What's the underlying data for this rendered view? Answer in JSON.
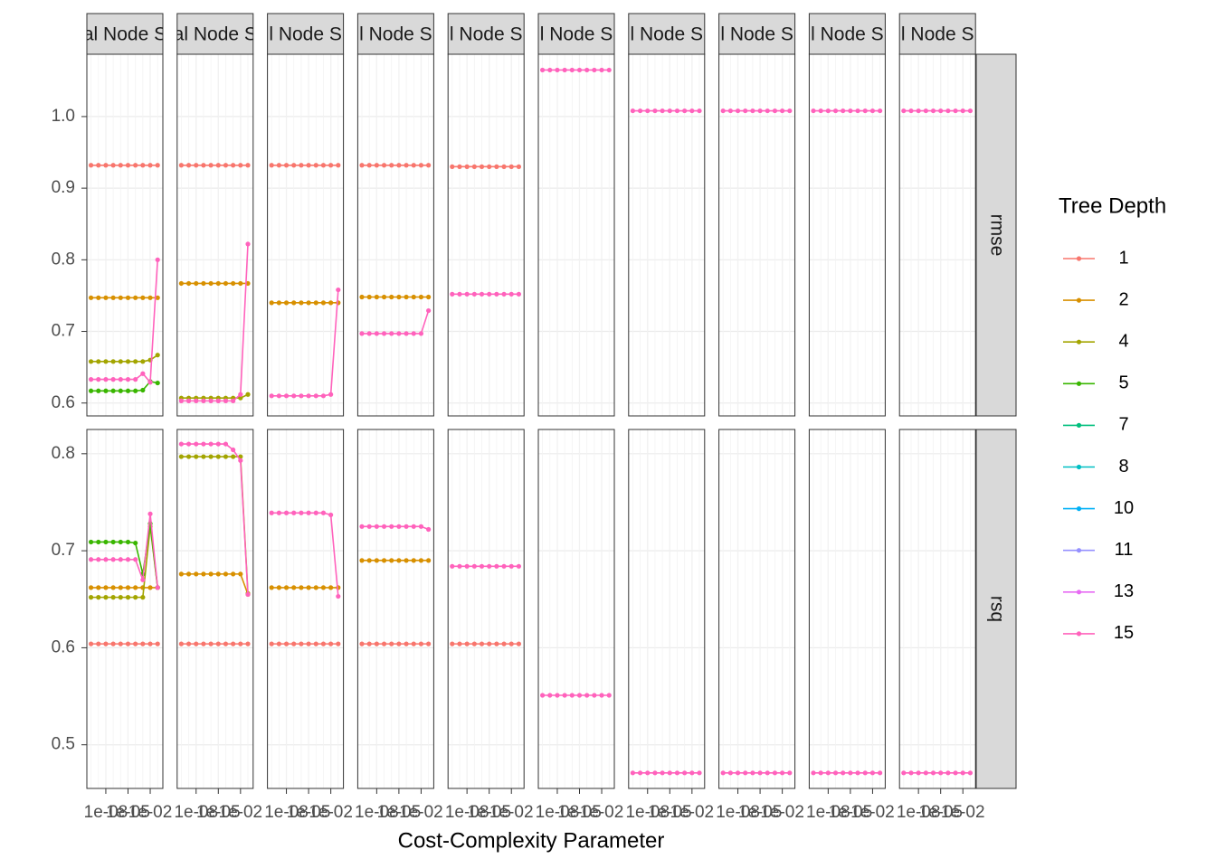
{
  "chart_data": {
    "type": "line",
    "x_label": "Cost-Complexity Parameter",
    "log_x": true,
    "x": [
      1e-10,
      1e-09,
      1e-08,
      1e-07,
      1e-06,
      1e-05,
      0.0001,
      0.001,
      0.01,
      0.1
    ],
    "xlim": [
      2.75e-11,
      0.51
    ],
    "xticks": [
      {
        "value": 1e-08,
        "label": "1e-08"
      },
      {
        "value": 1e-05,
        "label": "1e-05"
      },
      {
        "value": 0.01,
        "label": "1e-02"
      }
    ],
    "grid": true,
    "legend": {
      "title": "Tree Depth",
      "position": "right",
      "entries": [
        {
          "name": "1",
          "color": "#F8766D"
        },
        {
          "name": "2",
          "color": "#D89000"
        },
        {
          "name": "4",
          "color": "#A3A500"
        },
        {
          "name": "5",
          "color": "#39B600"
        },
        {
          "name": "7",
          "color": "#00BF7D"
        },
        {
          "name": "8",
          "color": "#00BFC4"
        },
        {
          "name": "10",
          "color": "#00B0F6"
        },
        {
          "name": "11",
          "color": "#9590FF"
        },
        {
          "name": "13",
          "color": "#E76BF3"
        },
        {
          "name": "15",
          "color": "#FF62BC"
        }
      ]
    },
    "columns": [
      "al Node S",
      "al Node S",
      "l Node S",
      "l Node S",
      "l Node S",
      "l Node S",
      "l Node S",
      "l Node S",
      "l Node S",
      "l Node S"
    ],
    "rows": [
      {
        "label": "rmse",
        "ylim": [
          0.582,
          1.087
        ],
        "yticks": [
          0.6,
          0.7,
          0.8,
          0.9,
          {
            "value": 1,
            "label": "1.0"
          }
        ],
        "panels": [
          [
            {
              "name": "1",
              "values": [
                0.932,
                0.932,
                0.932,
                0.932,
                0.932,
                0.932,
                0.932,
                0.932,
                0.932,
                0.932
              ]
            },
            {
              "name": "2",
              "values": [
                0.747,
                0.747,
                0.747,
                0.747,
                0.747,
                0.747,
                0.747,
                0.747,
                0.747,
                0.747
              ]
            },
            {
              "name": "4",
              "values": [
                0.658,
                0.658,
                0.658,
                0.658,
                0.658,
                0.658,
                0.658,
                0.658,
                0.66,
                0.667
              ]
            },
            {
              "name": "5",
              "values": [
                0.617,
                0.617,
                0.617,
                0.617,
                0.617,
                0.617,
                0.617,
                0.618,
                0.63,
                0.628
              ]
            },
            {
              "name": "15",
              "values": [
                0.633,
                0.633,
                0.633,
                0.633,
                0.633,
                0.633,
                0.633,
                0.641,
                0.629,
                0.8
              ]
            }
          ],
          [
            {
              "name": "1",
              "values": [
                0.932,
                0.932,
                0.932,
                0.932,
                0.932,
                0.932,
                0.932,
                0.932,
                0.932,
                0.932
              ]
            },
            {
              "name": "2",
              "values": [
                0.767,
                0.767,
                0.767,
                0.767,
                0.767,
                0.767,
                0.767,
                0.767,
                0.767,
                0.767
              ]
            },
            {
              "name": "4",
              "values": [
                0.607,
                0.607,
                0.607,
                0.607,
                0.607,
                0.607,
                0.607,
                0.607,
                0.607,
                0.612
              ]
            },
            {
              "name": "15",
              "values": [
                0.603,
                0.603,
                0.603,
                0.603,
                0.603,
                0.603,
                0.603,
                0.603,
                0.612,
                0.822
              ]
            }
          ],
          [
            {
              "name": "1",
              "values": [
                0.932,
                0.932,
                0.932,
                0.932,
                0.932,
                0.932,
                0.932,
                0.932,
                0.932,
                0.932
              ]
            },
            {
              "name": "2",
              "values": [
                0.74,
                0.74,
                0.74,
                0.74,
                0.74,
                0.74,
                0.74,
                0.74,
                0.74,
                0.74
              ]
            },
            {
              "name": "15",
              "values": [
                0.61,
                0.61,
                0.61,
                0.61,
                0.61,
                0.61,
                0.61,
                0.61,
                0.612,
                0.758
              ]
            }
          ],
          [
            {
              "name": "1",
              "values": [
                0.932,
                0.932,
                0.932,
                0.932,
                0.932,
                0.932,
                0.932,
                0.932,
                0.932,
                0.932
              ]
            },
            {
              "name": "2",
              "values": [
                0.748,
                0.748,
                0.748,
                0.748,
                0.748,
                0.748,
                0.748,
                0.748,
                0.748,
                0.748
              ]
            },
            {
              "name": "15",
              "values": [
                0.697,
                0.697,
                0.697,
                0.697,
                0.697,
                0.697,
                0.697,
                0.697,
                0.697,
                0.729
              ]
            }
          ],
          [
            {
              "name": "1",
              "values": [
                0.93,
                0.93,
                0.93,
                0.93,
                0.93,
                0.93,
                0.93,
                0.93,
                0.93,
                0.93
              ]
            },
            {
              "name": "15",
              "values": [
                0.752,
                0.752,
                0.752,
                0.752,
                0.752,
                0.752,
                0.752,
                0.752,
                0.752,
                0.752
              ]
            }
          ],
          [
            {
              "name": "15",
              "values": [
                1.065,
                1.065,
                1.065,
                1.065,
                1.065,
                1.065,
                1.065,
                1.065,
                1.065,
                1.065
              ]
            }
          ],
          [
            {
              "name": "15",
              "values": [
                1.008,
                1.008,
                1.008,
                1.008,
                1.008,
                1.008,
                1.008,
                1.008,
                1.008,
                1.008
              ]
            }
          ],
          [
            {
              "name": "15",
              "values": [
                1.008,
                1.008,
                1.008,
                1.008,
                1.008,
                1.008,
                1.008,
                1.008,
                1.008,
                1.008
              ]
            }
          ],
          [
            {
              "name": "15",
              "values": [
                1.008,
                1.008,
                1.008,
                1.008,
                1.008,
                1.008,
                1.008,
                1.008,
                1.008,
                1.008
              ]
            }
          ],
          [
            {
              "name": "15",
              "values": [
                1.008,
                1.008,
                1.008,
                1.008,
                1.008,
                1.008,
                1.008,
                1.008,
                1.008,
                1.008
              ]
            }
          ]
        ]
      },
      {
        "label": "rsq",
        "ylim": [
          0.455,
          0.825
        ],
        "yticks": [
          0.5,
          0.6,
          0.7,
          0.8
        ],
        "panels": [
          [
            {
              "name": "1",
              "values": [
                0.604,
                0.604,
                0.604,
                0.604,
                0.604,
                0.604,
                0.604,
                0.604,
                0.604,
                0.604
              ]
            },
            {
              "name": "2",
              "values": [
                0.662,
                0.662,
                0.662,
                0.662,
                0.662,
                0.662,
                0.662,
                0.662,
                0.662,
                0.662
              ]
            },
            {
              "name": "4",
              "values": [
                0.652,
                0.652,
                0.652,
                0.652,
                0.652,
                0.652,
                0.652,
                0.652,
                0.725,
                0.662
              ]
            },
            {
              "name": "5",
              "values": [
                0.709,
                0.709,
                0.709,
                0.709,
                0.709,
                0.709,
                0.708,
                0.676,
                0.728,
                0.662
              ]
            },
            {
              "name": "15",
              "values": [
                0.691,
                0.691,
                0.691,
                0.691,
                0.691,
                0.691,
                0.691,
                0.67,
                0.738,
                0.662
              ]
            }
          ],
          [
            {
              "name": "1",
              "values": [
                0.604,
                0.604,
                0.604,
                0.604,
                0.604,
                0.604,
                0.604,
                0.604,
                0.604,
                0.604
              ]
            },
            {
              "name": "2",
              "values": [
                0.676,
                0.676,
                0.676,
                0.676,
                0.676,
                0.676,
                0.676,
                0.676,
                0.676,
                0.655
              ]
            },
            {
              "name": "4",
              "values": [
                0.797,
                0.797,
                0.797,
                0.797,
                0.797,
                0.797,
                0.797,
                0.797,
                0.797,
                0.656
              ]
            },
            {
              "name": "15",
              "values": [
                0.81,
                0.81,
                0.81,
                0.81,
                0.81,
                0.81,
                0.81,
                0.804,
                0.793,
                0.655
              ]
            }
          ],
          [
            {
              "name": "1",
              "values": [
                0.604,
                0.604,
                0.604,
                0.604,
                0.604,
                0.604,
                0.604,
                0.604,
                0.604,
                0.604
              ]
            },
            {
              "name": "2",
              "values": [
                0.662,
                0.662,
                0.662,
                0.662,
                0.662,
                0.662,
                0.662,
                0.662,
                0.662,
                0.662
              ]
            },
            {
              "name": "15",
              "values": [
                0.739,
                0.739,
                0.739,
                0.739,
                0.739,
                0.739,
                0.739,
                0.739,
                0.737,
                0.653
              ]
            }
          ],
          [
            {
              "name": "1",
              "values": [
                0.604,
                0.604,
                0.604,
                0.604,
                0.604,
                0.604,
                0.604,
                0.604,
                0.604,
                0.604
              ]
            },
            {
              "name": "2",
              "values": [
                0.69,
                0.69,
                0.69,
                0.69,
                0.69,
                0.69,
                0.69,
                0.69,
                0.69,
                0.69
              ]
            },
            {
              "name": "15",
              "values": [
                0.725,
                0.725,
                0.725,
                0.725,
                0.725,
                0.725,
                0.725,
                0.725,
                0.725,
                0.722
              ]
            }
          ],
          [
            {
              "name": "1",
              "values": [
                0.604,
                0.604,
                0.604,
                0.604,
                0.604,
                0.604,
                0.604,
                0.604,
                0.604,
                0.604
              ]
            },
            {
              "name": "15",
              "values": [
                0.684,
                0.684,
                0.684,
                0.684,
                0.684,
                0.684,
                0.684,
                0.684,
                0.684,
                0.684
              ]
            }
          ],
          [
            {
              "name": "15",
              "values": [
                0.551,
                0.551,
                0.551,
                0.551,
                0.551,
                0.551,
                0.551,
                0.551,
                0.551,
                0.551
              ]
            }
          ],
          [
            {
              "name": "15",
              "values": [
                0.471,
                0.471,
                0.471,
                0.471,
                0.471,
                0.471,
                0.471,
                0.471,
                0.471,
                0.471
              ]
            }
          ],
          [
            {
              "name": "15",
              "values": [
                0.471,
                0.471,
                0.471,
                0.471,
                0.471,
                0.471,
                0.471,
                0.471,
                0.471,
                0.471
              ]
            }
          ],
          [
            {
              "name": "15",
              "values": [
                0.471,
                0.471,
                0.471,
                0.471,
                0.471,
                0.471,
                0.471,
                0.471,
                0.471,
                0.471
              ]
            }
          ],
          [
            {
              "name": "15",
              "values": [
                0.471,
                0.471,
                0.471,
                0.471,
                0.471,
                0.471,
                0.471,
                0.471,
                0.471,
                0.471
              ]
            }
          ]
        ]
      }
    ]
  }
}
